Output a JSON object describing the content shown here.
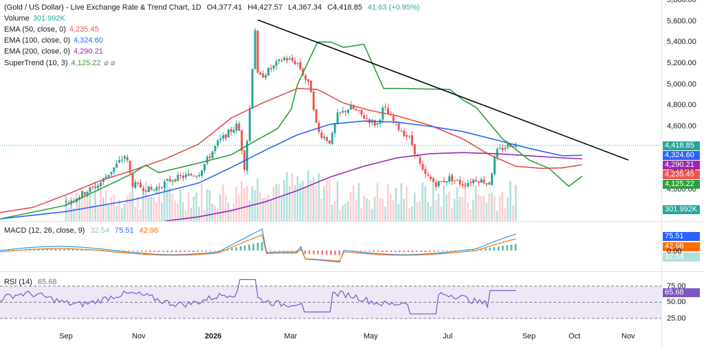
{
  "title": "(Gold / US Dollar) - Live Exchange Rate & Trend Chart, 1D",
  "ohlc": {
    "o": "O4,377.41",
    "h": "H4,427.57",
    "l": "L4,367.34",
    "c": "C4,418.85",
    "chg": "41.63 (+0.95%)"
  },
  "legend": {
    "volume": {
      "label": "Volume",
      "value": "301.992K"
    },
    "ema50": {
      "label": "EMA (50, close, 0)",
      "value": "4,235.45"
    },
    "ema100": {
      "label": "EMA (100, close, 0)",
      "value": "4,324.60"
    },
    "ema200": {
      "label": "EMA (200, close, 0)",
      "value": "4,290.21"
    },
    "supertrend": {
      "label": "SuperTrend (10, 3)",
      "value": "4,125.22",
      "marks": "⌀ ⌀"
    }
  },
  "macd_legend": {
    "label": "MACD (12, 26, close, 9)",
    "hist": "32.54",
    "macd": "75.51",
    "signal": "42.98"
  },
  "rsi_legend": {
    "label": "RSI (14)",
    "value": "65.68"
  },
  "colors": {
    "up": "#26a69a",
    "down": "#ef5350",
    "ema50": "#e84b4b",
    "ema100": "#2962ff",
    "ema200": "#9c27b0",
    "supertrend": "#2e9e3c",
    "st_down": "#8b3a3a",
    "trend": "#000000",
    "macd": "#2196f3",
    "signal": "#ff6d00",
    "rsi": "#7e57c2",
    "rsiband": "#ede7f6"
  },
  "chart_data": [
    {
      "type": "candlestick",
      "title": "(Gold / US Dollar) - Live Exchange Rate & Trend Chart, 1D",
      "ylim": [
        3700,
        5800
      ],
      "yticks": [
        3800,
        4000,
        4200,
        4400,
        4600,
        4800,
        5000,
        5200,
        5400,
        5600,
        5800
      ],
      "ytick_labels": [
        "3,800.00",
        "4,000.00",
        "4,200.00",
        "4,400.00",
        "4,600.00",
        "4,800.00",
        "5,000.00",
        "5,200.00",
        "5,400.00",
        "5,600.00",
        "5,800.00"
      ],
      "xtick_labels": [
        "Sep",
        "Nov",
        "2026",
        "Mar",
        "May",
        "Jul",
        "Sep",
        "Oct",
        "Nov"
      ],
      "series": [
        {
          "name": "EMA (50, close, 0)",
          "points": [
            [
              0,
              3780
            ],
            [
              0.05,
              3830
            ],
            [
              0.1,
              3950
            ],
            [
              0.15,
              4080
            ],
            [
              0.2,
              4180
            ],
            [
              0.25,
              4290
            ],
            [
              0.3,
              4430
            ],
            [
              0.35,
              4680
            ],
            [
              0.4,
              4830
            ],
            [
              0.45,
              4960
            ],
            [
              0.48,
              4950
            ],
            [
              0.52,
              4820
            ],
            [
              0.56,
              4750
            ],
            [
              0.6,
              4700
            ],
            [
              0.65,
              4610
            ],
            [
              0.7,
              4480
            ],
            [
              0.74,
              4330
            ],
            [
              0.78,
              4220
            ],
            [
              0.82,
              4200
            ],
            [
              0.85,
              4205
            ],
            [
              0.88,
              4235
            ]
          ]
        },
        {
          "name": "EMA (100, close, 0)",
          "points": [
            [
              0,
              3720
            ],
            [
              0.1,
              3790
            ],
            [
              0.2,
              3900
            ],
            [
              0.3,
              4060
            ],
            [
              0.35,
              4210
            ],
            [
              0.4,
              4370
            ],
            [
              0.45,
              4520
            ],
            [
              0.5,
              4620
            ],
            [
              0.55,
              4650
            ],
            [
              0.6,
              4640
            ],
            [
              0.65,
              4600
            ],
            [
              0.7,
              4550
            ],
            [
              0.75,
              4470
            ],
            [
              0.8,
              4390
            ],
            [
              0.85,
              4320
            ],
            [
              0.88,
              4325
            ]
          ]
        },
        {
          "name": "EMA (200, close, 0)",
          "points": [
            [
              0.25,
              3700
            ],
            [
              0.3,
              3740
            ],
            [
              0.35,
              3800
            ],
            [
              0.4,
              3880
            ],
            [
              0.45,
              3990
            ],
            [
              0.5,
              4120
            ],
            [
              0.55,
              4220
            ],
            [
              0.6,
              4300
            ],
            [
              0.65,
              4340
            ],
            [
              0.7,
              4350
            ],
            [
              0.75,
              4340
            ],
            [
              0.8,
              4320
            ],
            [
              0.85,
              4300
            ],
            [
              0.88,
              4290
            ]
          ]
        },
        {
          "name": "SuperTrend (10, 3)",
          "points": [
            [
              0,
              3720
            ],
            [
              0.1,
              3850
            ],
            [
              0.2,
              4150
            ],
            [
              0.22,
              4230
            ],
            [
              0.24,
              4160
            ],
            [
              0.3,
              4250
            ],
            [
              0.35,
              4330
            ],
            [
              0.38,
              4440
            ],
            [
              0.42,
              4580
            ],
            [
              0.44,
              4760
            ],
            [
              0.45,
              5000
            ],
            [
              0.48,
              5400
            ],
            [
              0.5,
              5400
            ],
            [
              0.52,
              5350
            ],
            [
              0.55,
              5380
            ],
            [
              0.58,
              4960
            ],
            [
              0.6,
              4960
            ],
            [
              0.68,
              4950
            ],
            [
              0.7,
              4850
            ],
            [
              0.72,
              4780
            ],
            [
              0.76,
              4480
            ],
            [
              0.8,
              4280
            ],
            [
              0.83,
              4200
            ],
            [
              0.86,
              4030
            ],
            [
              0.88,
              4125
            ]
          ]
        },
        {
          "name": "Trendline",
          "points": [
            [
              0.39,
              5610
            ],
            [
              0.95,
              4280
            ]
          ]
        }
      ],
      "last": {
        "close": 4418.85,
        "ema100": 4324.6,
        "ema200": 4290.21,
        "ema50": 4235.45,
        "supertrend": 4125.22,
        "volume": "301.992K"
      }
    },
    {
      "type": "line",
      "title": "MACD (12, 26, close, 9)",
      "series": [
        {
          "name": "MACD",
          "last": 75.51
        },
        {
          "name": "Signal",
          "last": 42.98
        },
        {
          "name": "Histogram",
          "last": 32.54
        }
      ],
      "ytick_labels": [
        "0.00"
      ]
    },
    {
      "type": "line",
      "title": "RSI (14)",
      "ylim": [
        10,
        95
      ],
      "yticks": [
        25,
        50,
        75
      ],
      "ytick_labels": [
        "25.00",
        "50.00",
        "75.00"
      ],
      "series": [
        {
          "name": "RSI",
          "last": 65.68
        }
      ]
    }
  ],
  "badges": [
    {
      "value": "4,418.85",
      "color": "#26a69a",
      "price": 4418.85
    },
    {
      "value": "4,324.60",
      "color": "#2962ff",
      "price": 4324.6
    },
    {
      "value": "4,290.21",
      "color": "#9c27b0",
      "price": 4290.21
    },
    {
      "value": "4,235.45",
      "color": "#ef5350",
      "price": 4235.45
    },
    {
      "value": "4,125.22",
      "color": "#2e9e3c",
      "price": 4125.22
    },
    {
      "value": "301.992K",
      "color": "#26a69a",
      "price": 3810
    }
  ],
  "macd_badges": [
    {
      "value": "75.51",
      "color": "#2962ff"
    },
    {
      "value": "42.98",
      "color": "#ff6d00"
    },
    {
      "value": "32.54",
      "color": "#b2dfdb"
    }
  ],
  "rsi_badge": {
    "value": "65.68",
    "color": "#7e57c2"
  }
}
